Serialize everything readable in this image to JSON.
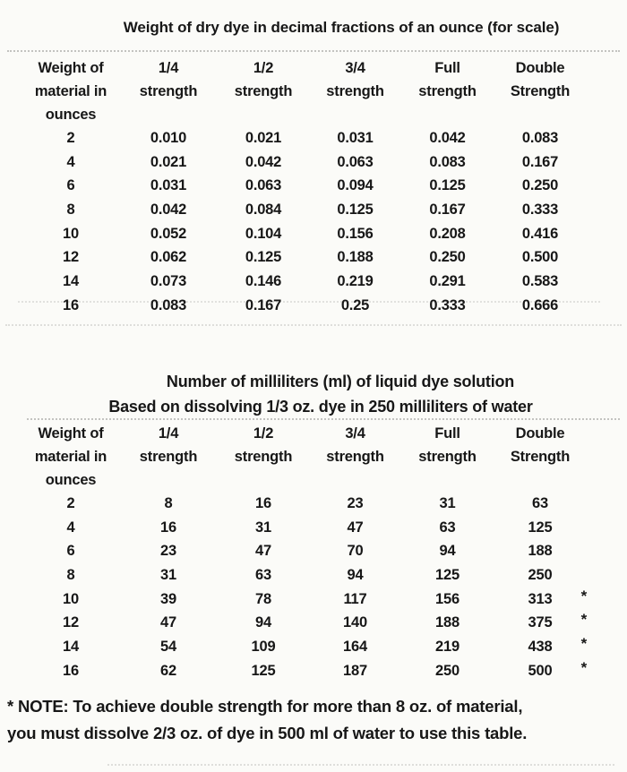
{
  "page": {
    "background_color": "#fbfbf8",
    "text_color": "#171717"
  },
  "table1": {
    "title": "Weight of dry dye in decimal fractions of an ounce (for scale)",
    "headers": [
      [
        "Weight of",
        "material in",
        "ounces"
      ],
      [
        "1/4",
        "strength"
      ],
      [
        "1/2",
        "strength"
      ],
      [
        "3/4",
        "strength"
      ],
      [
        "Full",
        "strength"
      ],
      [
        "Double",
        "Strength"
      ]
    ],
    "rows": [
      [
        "2",
        "0.010",
        "0.021",
        "0.031",
        "0.042",
        "0.083"
      ],
      [
        "4",
        "0.021",
        "0.042",
        "0.063",
        "0.083",
        "0.167"
      ],
      [
        "6",
        "0.031",
        "0.063",
        "0.094",
        "0.125",
        "0.250"
      ],
      [
        "8",
        "0.042",
        "0.084",
        "0.125",
        "0.167",
        "0.333"
      ],
      [
        "10",
        "0.052",
        "0.104",
        "0.156",
        "0.208",
        "0.416"
      ],
      [
        "12",
        "0.062",
        "0.125",
        "0.188",
        "0.250",
        "0.500"
      ],
      [
        "14",
        "0.073",
        "0.146",
        "0.219",
        "0.291",
        "0.583"
      ],
      [
        "16",
        "0.083",
        "0.167",
        "0.25",
        "0.333",
        "0.666"
      ]
    ]
  },
  "table2": {
    "title": "Number of milliliters (ml) of liquid dye solution",
    "subtitle": "Based on dissolving 1/3 oz. dye in 250 milliliters of water",
    "headers": [
      [
        "Weight of",
        "material in",
        "ounces"
      ],
      [
        "1/4",
        "strength"
      ],
      [
        "1/2",
        "strength"
      ],
      [
        "3/4",
        "strength"
      ],
      [
        "Full",
        "strength"
      ],
      [
        "Double",
        "Strength"
      ]
    ],
    "rows": [
      [
        "2",
        "8",
        "16",
        "23",
        "31",
        "63"
      ],
      [
        "4",
        "16",
        "31",
        "47",
        "63",
        "125"
      ],
      [
        "6",
        "23",
        "47",
        "70",
        "94",
        "188"
      ],
      [
        "8",
        "31",
        "63",
        "94",
        "125",
        "250"
      ],
      [
        "10",
        "39",
        "78",
        "117",
        "156",
        "313"
      ],
      [
        "12",
        "47",
        "94",
        "140",
        "188",
        "375"
      ],
      [
        "14",
        "54",
        "109",
        "164",
        "219",
        "438"
      ],
      [
        "16",
        "62",
        "125",
        "187",
        "250",
        "500"
      ]
    ],
    "asterisk_rows": [
      "10",
      "12",
      "14",
      "16"
    ],
    "asterisk_symbol": "*"
  },
  "note": {
    "lines": [
      "* NOTE: To achieve double strength for more than 8 oz. of material,",
      "you must dissolve 2/3 oz. of dye in 500 ml of water to use this table."
    ]
  }
}
